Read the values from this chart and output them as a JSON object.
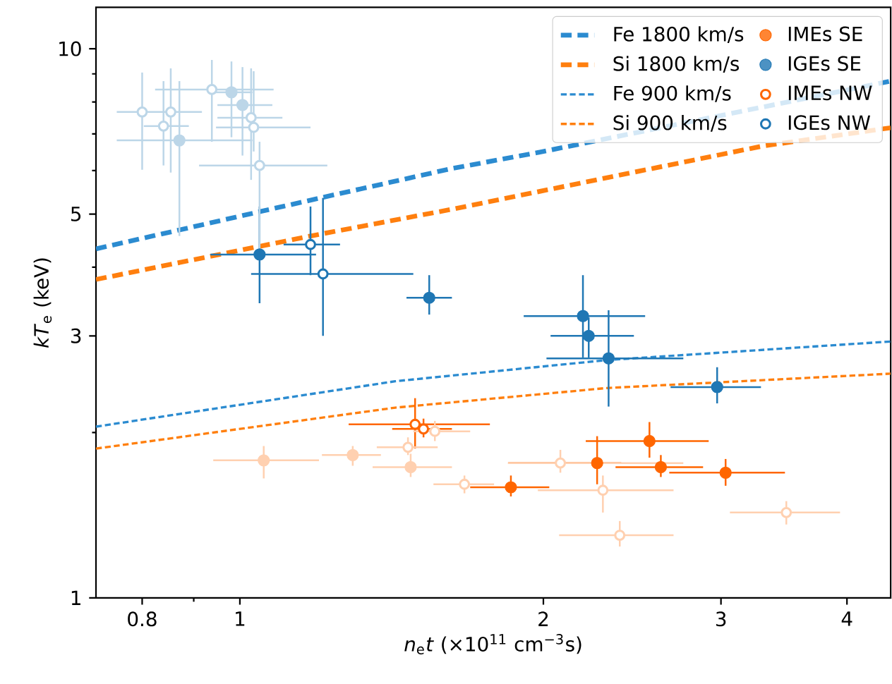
{
  "chart_data": {
    "type": "scatter",
    "xlabel": "*n*$_{e}$*t* (×10$^{11}$ cm$^{−3}$s)",
    "ylabel": "*kT*$_{e}$ (keV)",
    "log": "xy",
    "legend": "top right",
    "xlim": [
      0.72,
      4.42
    ],
    "ylim": [
      1,
      11.9
    ],
    "xticks": [
      0.8,
      {
        "value": 0.9,
        "label": null
      },
      1,
      2,
      3,
      4
    ],
    "yticks": [
      1,
      {
        "value": 2,
        "label": null
      },
      3,
      {
        "value": 4,
        "label": null
      },
      5,
      {
        "value": 6,
        "label": null
      },
      {
        "value": 7,
        "label": null
      },
      {
        "value": 8,
        "label": null
      },
      {
        "value": 9,
        "label": null
      },
      10
    ],
    "series": [
      {
        "name": "Fe 1800 km/s",
        "type": "line",
        "line_style": "dashed",
        "color": "#2b8bd0",
        "x": [
          0.72,
          1.202,
          1.622,
          2.0,
          4.42
        ],
        "values": [
          4.32,
          5.35,
          6.05,
          6.5,
          8.73
        ],
        "marker": "none"
      },
      {
        "name": "Si 1800 km/s",
        "type": "line",
        "line_style": "dashed",
        "color": "#ff7f0e",
        "x": [
          0.72,
          1.175,
          1.622,
          3.3,
          4.42
        ],
        "values": [
          3.8,
          4.56,
          5.1,
          6.65,
          7.18
        ],
        "marker": "none"
      },
      {
        "name": "Fe 900 km/s",
        "type": "line",
        "line_style": "dashed",
        "color": "#2b8bd0",
        "x": [
          0.72,
          1.426,
          2.31,
          4.42
        ],
        "values": [
          2.05,
          2.48,
          2.71,
          2.93
        ],
        "marker": "none"
      },
      {
        "name": "Si 900 km/s",
        "type": "line",
        "line_style": "dashed",
        "color": "#ff7f0e",
        "x": [
          0.72,
          1.426,
          2.31,
          4.42
        ],
        "values": [
          1.87,
          2.22,
          2.41,
          2.56
        ],
        "marker": "none"
      },
      {
        "name": "IMEs SE",
        "marker": "circle",
        "color": "#ff6600",
        "x": [
          1.857,
          2.261,
          2.548,
          2.615,
          3.032
        ],
        "values": [
          1.59,
          1.76,
          1.93,
          1.73,
          1.69
        ],
        "errors": [
          [
            1.53,
            1.67
          ],
          [
            1.61,
            1.97
          ],
          [
            1.8,
            2.09
          ],
          [
            1.66,
            1.82
          ],
          [
            1.6,
            1.79
          ]
        ],
        "xerrors": [
          [
            1.692,
            2.027
          ],
          [
            1.845,
            2.389
          ],
          [
            2.203,
            2.917
          ],
          [
            2.358,
            2.88
          ],
          [
            2.666,
            3.472
          ]
        ]
      },
      {
        "name": "IGEs SE",
        "marker": "circle",
        "color": "#1f77b4",
        "x": [
          1.046,
          1.541,
          2.189,
          2.218,
          2.321,
          2.974
        ],
        "values": [
          4.22,
          3.52,
          3.26,
          3.0,
          2.73,
          2.42
        ],
        "errors": [
          [
            3.44,
            5.16
          ],
          [
            3.28,
            3.87
          ],
          [
            2.74,
            3.87
          ],
          [
            2.74,
            3.24
          ],
          [
            2.23,
            3.34
          ],
          [
            2.26,
            2.63
          ]
        ],
        "xerrors": [
          [
            0.935,
            1.19
          ],
          [
            1.463,
            1.623
          ],
          [
            1.912,
            2.523
          ],
          [
            2.033,
            2.459
          ],
          [
            2.014,
            2.753
          ],
          [
            2.674,
            3.287
          ]
        ]
      },
      {
        "name": "IMEs NW",
        "marker": "circle",
        "color": "#ff6600",
        "x": [
          1.492,
          1.521
        ],
        "values": [
          2.07,
          2.03
        ],
        "errors": [
          [
            1.87,
            2.31
          ],
          [
            1.96,
            2.12
          ]
        ],
        "xerrors": [
          [
            1.282,
            1.77
          ],
          [
            1.416,
            1.623
          ]
        ]
      },
      {
        "name": "IGEs NW",
        "marker": "circle",
        "color": "#1f77b4",
        "x": [
          1.175,
          1.209
        ],
        "values": [
          4.4,
          3.89
        ],
        "errors": [
          [
            3.87,
            5.16
          ],
          [
            3.0,
            5.35
          ]
        ],
        "xerrors": [
          [
            1.105,
            1.257
          ],
          [
            1.026,
            1.486
          ]
        ]
      },
      {
        "marker": "circle",
        "color": "#ffd0b0",
        "x": [
          1.056,
          1.294,
          1.477
        ],
        "values": [
          1.78,
          1.82,
          1.73
        ],
        "errors": [
          [
            1.65,
            1.89
          ],
          [
            1.74,
            1.89
          ],
          [
            1.66,
            1.83
          ]
        ],
        "xerrors": [
          [
            0.941,
            1.198
          ],
          [
            1.206,
            1.38
          ],
          [
            1.354,
            1.623
          ]
        ]
      },
      {
        "marker": "circle",
        "color": "#bcd6e8",
        "x": [
          0.981,
          1.006,
          0.871
        ],
        "values": [
          8.33,
          7.9,
          6.81
        ],
        "errors": [
          [
            6.9,
            9.48
          ],
          [
            6.39,
            9.26
          ],
          [
            4.56,
            8.73
          ]
        ],
        "xerrors": [
          [
            0.938,
            1.029
          ],
          [
            0.95,
            1.077
          ],
          [
            0.755,
            1.029
          ]
        ]
      },
      {
        "marker": "circle",
        "color": "#ffd0b0",
        "x": [
          1.561,
          1.468,
          1.67,
          2.079,
          2.291,
          2.381,
          3.483
        ],
        "values": [
          2.01,
          1.88,
          1.61,
          1.76,
          1.57,
          1.3,
          1.43
        ],
        "errors": [
          [
            1.93,
            2.1
          ],
          [
            1.82,
            1.96
          ],
          [
            1.55,
            1.67
          ],
          [
            1.69,
            1.86
          ],
          [
            1.43,
            1.67
          ],
          [
            1.24,
            1.38
          ],
          [
            1.36,
            1.5
          ]
        ],
        "xerrors": [
          [
            1.486,
            1.692
          ],
          [
            1.367,
            1.571
          ],
          [
            1.556,
            1.787
          ],
          [
            1.845,
            2.753
          ],
          [
            1.975,
            2.692
          ],
          [
            2.073,
            2.692
          ],
          [
            3.062,
            3.938
          ]
        ]
      },
      {
        "marker": "circle",
        "color": "#bcd6e8",
        "x": [
          0.8,
          0.854,
          0.84,
          0.938,
          1.026,
          1.032,
          1.046
        ],
        "values": [
          7.67,
          7.67,
          7.23,
          8.43,
          7.49,
          7.19,
          6.13
        ],
        "errors": [
          [
            6.02,
            9.05
          ],
          [
            5.95,
            9.21
          ],
          [
            6.13,
            8.73
          ],
          [
            6.77,
            9.54
          ],
          [
            5.77,
            9.21
          ],
          [
            6.5,
            9.1
          ],
          [
            4.3,
            6.77
          ]
        ],
        "xerrors": [
          [
            0.755,
            0.917
          ],
          null,
          [
            0.803,
            0.89
          ],
          [
            0.824,
            1.08
          ],
          [
            0.95,
            1.102
          ],
          [
            0.947,
            1.175
          ],
          [
            0.911,
            1.221
          ]
        ]
      }
    ]
  }
}
